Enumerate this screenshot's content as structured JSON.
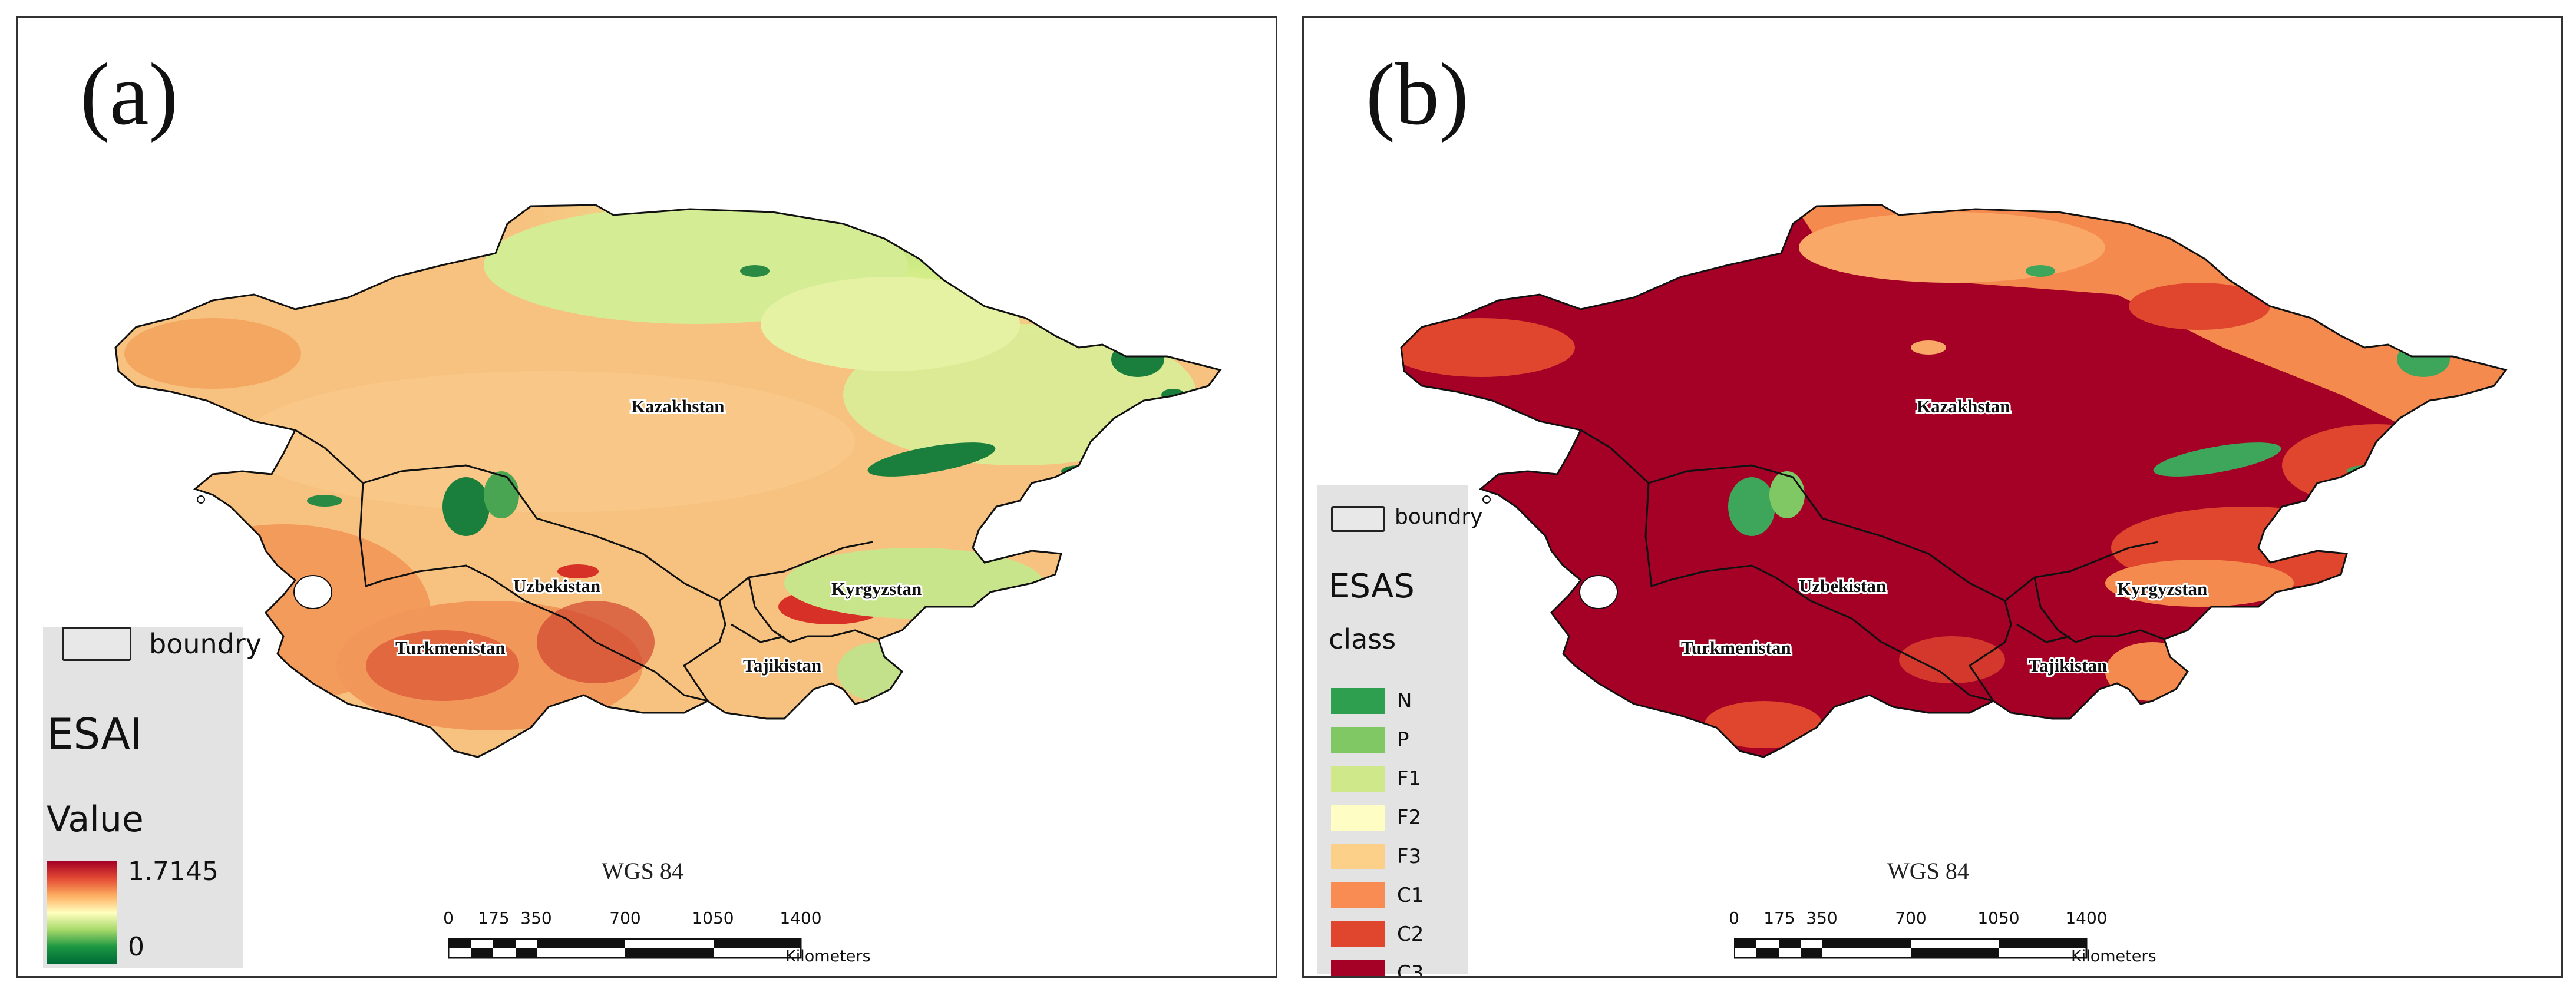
{
  "panels": [
    {
      "label": "(a)",
      "crs": "WGS 84",
      "countries": [
        "Kazakhstan",
        "Uzbekistan",
        "Kyrgyzstan",
        "Turkmenistan",
        "Tajikistan"
      ],
      "legend": {
        "boundary_label": "boundry",
        "title": "ESAI",
        "subtitle": "Value",
        "max_label": "1.7145",
        "min_label": "0"
      },
      "scale": {
        "ticks": [
          "0",
          "175",
          "350",
          "700",
          "1050",
          "1400"
        ],
        "unit": "Kilometers"
      }
    },
    {
      "label": "(b)",
      "crs": "WGS 84",
      "countries": [
        "Kazakhstan",
        "Uzbekistan",
        "Kyrgyzstan",
        "Turkmenistan",
        "Tajikistan"
      ],
      "legend": {
        "boundary_label": "boundry",
        "title": "ESAS",
        "subtitle": "class",
        "classes": [
          {
            "label": "N",
            "color": "#2e9e4f"
          },
          {
            "label": "P",
            "color": "#80c864"
          },
          {
            "label": "F1",
            "color": "#cfe88a"
          },
          {
            "label": "F2",
            "color": "#fdfdc4"
          },
          {
            "label": "F3",
            "color": "#fdd08a"
          },
          {
            "label": "C1",
            "color": "#f98c52"
          },
          {
            "label": "C2",
            "color": "#e0452e"
          },
          {
            "label": "C3",
            "color": "#a50026"
          }
        ]
      },
      "scale": {
        "ticks": [
          "0",
          "175",
          "350",
          "700",
          "1050",
          "1400"
        ],
        "unit": "Kilometers"
      }
    }
  ],
  "colors": {
    "esai_fill": "#f7b56e",
    "esai_north": "#d6ec95",
    "esai_green": "#1a7f3c",
    "esai_red": "#d73027",
    "esas_fill": "#a50026",
    "esas_orange": "#f58a4f",
    "esas_green": "#3ea65b",
    "boundary": "#111111"
  }
}
